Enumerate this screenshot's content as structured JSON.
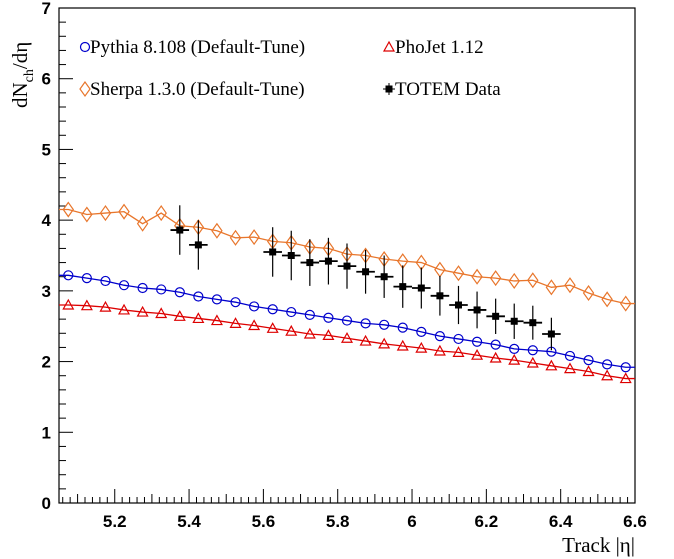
{
  "chart_data": {
    "type": "scatter",
    "title": "",
    "xlabel": "Track |η|",
    "ylabel_main": "dN",
    "ylabel_sub": "ch",
    "ylabel_tail": "/dη",
    "xlim": [
      5.05,
      6.6
    ],
    "ylim": [
      0,
      7
    ],
    "x_ticks": [
      "5.2",
      "5.4",
      "5.6",
      "5.8",
      "6",
      "6.2",
      "6.4",
      "6.6"
    ],
    "y_ticks": [
      "0",
      "1",
      "2",
      "3",
      "4",
      "5",
      "6",
      "7"
    ],
    "grid": false,
    "legend_placement": "top",
    "series": [
      {
        "name": "Pythia 8.108 (Default-Tune)",
        "color": "#0000cc",
        "marker": "open-circle",
        "x": [
          5.075,
          5.125,
          5.175,
          5.225,
          5.275,
          5.325,
          5.375,
          5.425,
          5.475,
          5.525,
          5.575,
          5.625,
          5.675,
          5.725,
          5.775,
          5.825,
          5.875,
          5.925,
          5.975,
          6.025,
          6.075,
          6.125,
          6.175,
          6.225,
          6.275,
          6.325,
          6.375,
          6.425,
          6.475,
          6.525,
          6.575
        ],
        "values": [
          3.22,
          3.18,
          3.14,
          3.08,
          3.04,
          3.02,
          2.98,
          2.92,
          2.88,
          2.84,
          2.78,
          2.74,
          2.7,
          2.66,
          2.62,
          2.58,
          2.54,
          2.52,
          2.48,
          2.42,
          2.36,
          2.32,
          2.28,
          2.24,
          2.18,
          2.16,
          2.14,
          2.08,
          2.02,
          1.96,
          1.92
        ]
      },
      {
        "name": "PhoJet 1.12",
        "color": "#dd0000",
        "marker": "open-triangle",
        "x": [
          5.075,
          5.125,
          5.175,
          5.225,
          5.275,
          5.325,
          5.375,
          5.425,
          5.475,
          5.525,
          5.575,
          5.625,
          5.675,
          5.725,
          5.775,
          5.825,
          5.875,
          5.925,
          5.975,
          6.025,
          6.075,
          6.125,
          6.175,
          6.225,
          6.275,
          6.325,
          6.375,
          6.425,
          6.475,
          6.525,
          6.575
        ],
        "values": [
          2.8,
          2.79,
          2.77,
          2.73,
          2.7,
          2.68,
          2.64,
          2.61,
          2.58,
          2.54,
          2.51,
          2.47,
          2.43,
          2.39,
          2.37,
          2.33,
          2.29,
          2.25,
          2.22,
          2.19,
          2.15,
          2.13,
          2.09,
          2.05,
          2.02,
          1.98,
          1.94,
          1.9,
          1.86,
          1.8,
          1.76
        ]
      },
      {
        "name": "Sherpa 1.3.0 (Default-Tune)",
        "color": "#e8762c",
        "marker": "open-diamond",
        "x": [
          5.075,
          5.125,
          5.175,
          5.225,
          5.275,
          5.325,
          5.375,
          5.425,
          5.475,
          5.525,
          5.575,
          5.625,
          5.675,
          5.725,
          5.775,
          5.825,
          5.875,
          5.925,
          5.975,
          6.025,
          6.075,
          6.125,
          6.175,
          6.225,
          6.275,
          6.325,
          6.375,
          6.425,
          6.475,
          6.525,
          6.575
        ],
        "values": [
          4.15,
          4.08,
          4.1,
          4.12,
          3.95,
          4.1,
          3.92,
          3.9,
          3.85,
          3.75,
          3.76,
          3.7,
          3.68,
          3.62,
          3.6,
          3.52,
          3.5,
          3.45,
          3.42,
          3.4,
          3.3,
          3.25,
          3.2,
          3.18,
          3.14,
          3.15,
          3.05,
          3.08,
          2.97,
          2.88,
          2.82
        ]
      },
      {
        "name": "TOTEM Data",
        "color": "#000000",
        "marker": "filled-square",
        "x": [
          5.375,
          5.425,
          5.625,
          5.675,
          5.725,
          5.775,
          5.825,
          5.875,
          5.925,
          5.975,
          6.025,
          6.075,
          6.125,
          6.175,
          6.225,
          6.275,
          6.325,
          6.375
        ],
        "values": [
          3.86,
          3.65,
          3.55,
          3.5,
          3.4,
          3.42,
          3.35,
          3.27,
          3.2,
          3.06,
          3.04,
          2.93,
          2.8,
          2.73,
          2.64,
          2.57,
          2.55,
          2.39
        ],
        "y_err": [
          0.35,
          0.35,
          0.35,
          0.35,
          0.33,
          0.33,
          0.32,
          0.31,
          0.3,
          0.3,
          0.29,
          0.28,
          0.27,
          0.26,
          0.25,
          0.25,
          0.24,
          0.23
        ],
        "x_err": 0.025
      }
    ]
  }
}
